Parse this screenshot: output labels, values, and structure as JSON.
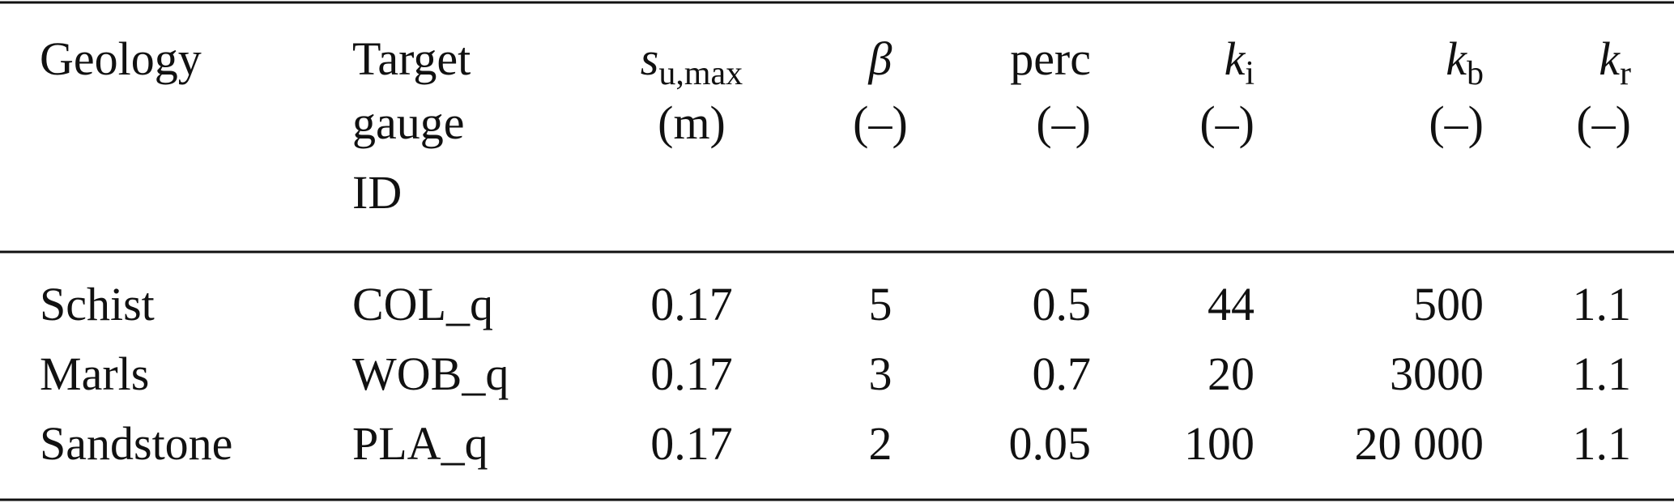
{
  "table": {
    "columns": [
      {
        "label": [
          "Geology"
        ]
      },
      {
        "label": [
          "Target",
          "gauge",
          "ID"
        ]
      },
      {
        "symbol": "s",
        "subscript": "u,max",
        "unit": "(m)"
      },
      {
        "symbol": "β",
        "unit": "(–)"
      },
      {
        "label": [
          "perc"
        ],
        "unit": "(–)"
      },
      {
        "symbol": "k",
        "subscript": "i",
        "unit": "(–)"
      },
      {
        "symbol": "k",
        "subscript": "b",
        "unit": "(–)"
      },
      {
        "symbol": "k",
        "subscript": "r",
        "unit": "(–)"
      }
    ],
    "rows": [
      [
        "Schist",
        "COL_q",
        "0.17",
        "5",
        "0.5",
        "44",
        "500",
        "1.1"
      ],
      [
        "Marls",
        "WOB_q",
        "0.17",
        "3",
        "0.7",
        "20",
        "3000",
        "1.1"
      ],
      [
        "Sandstone",
        "PLA_q",
        "0.17",
        "2",
        "0.05",
        "100",
        "20 000",
        "1.1"
      ]
    ]
  }
}
